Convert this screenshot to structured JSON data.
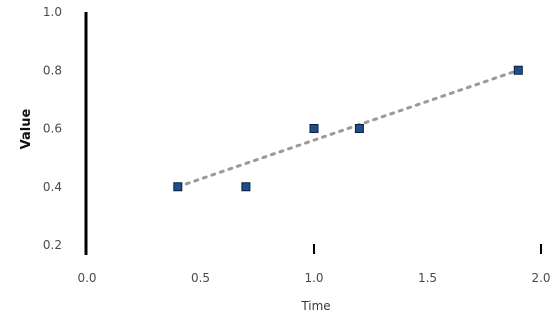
{
  "chart_data": {
    "type": "scatter",
    "xlabel": "Time",
    "ylabel": "Value",
    "x_ticks": [
      "0.0",
      "0.5",
      "1.0",
      "1.5",
      "2.0"
    ],
    "y_ticks": [
      "0.2",
      "0.4",
      "0.6",
      "0.8",
      "1.0"
    ],
    "xlim": [
      0.0,
      2.0
    ],
    "ylim": [
      0.2,
      1.0
    ],
    "grid": false,
    "legend": "none",
    "points": [
      {
        "x": 0.4,
        "y": 0.4
      },
      {
        "x": 0.7,
        "y": 0.4
      },
      {
        "x": 1.0,
        "y": 0.6
      },
      {
        "x": 1.2,
        "y": 0.6
      },
      {
        "x": 1.9,
        "y": 0.8
      }
    ],
    "trend_line": {
      "start": [
        0.4,
        0.4
      ],
      "end": [
        1.9,
        0.8
      ]
    },
    "colors": {
      "point": "#1f4e8c",
      "trend": "#9a9a9a",
      "axis": "#000000"
    }
  }
}
